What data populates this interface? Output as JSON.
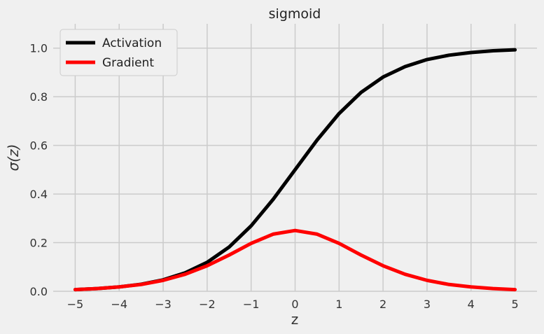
{
  "chart_data": {
    "type": "line",
    "title": "sigmoid",
    "xlabel": "z",
    "ylabel": "σ(z)",
    "xlim": [
      -5.5,
      5.5
    ],
    "ylim": [
      0,
      1.1
    ],
    "xticks": [
      -5,
      -4,
      -3,
      -2,
      -1,
      0,
      1,
      2,
      3,
      4,
      5
    ],
    "xtick_labels": [
      "−5",
      "−4",
      "−3",
      "−2",
      "−1",
      "0",
      "1",
      "2",
      "3",
      "4",
      "5"
    ],
    "yticks": [
      0.0,
      0.2,
      0.4,
      0.6,
      0.8,
      1.0
    ],
    "ytick_labels": [
      "0.0",
      "0.2",
      "0.4",
      "0.6",
      "0.8",
      "1.0"
    ],
    "grid": true,
    "legend_position": "top-left",
    "x": [
      -5,
      -4.5,
      -4,
      -3.5,
      -3,
      -2.5,
      -2,
      -1.5,
      -1,
      -0.5,
      0,
      0.5,
      1,
      1.5,
      2,
      2.5,
      3,
      3.5,
      4,
      4.5,
      5
    ],
    "series": [
      {
        "name": "Activation",
        "color": "#000000",
        "values": [
          0.007,
          0.011,
          0.018,
          0.029,
          0.047,
          0.076,
          0.119,
          0.182,
          0.269,
          0.378,
          0.5,
          0.622,
          0.731,
          0.818,
          0.881,
          0.924,
          0.953,
          0.971,
          0.982,
          0.989,
          0.993
        ]
      },
      {
        "name": "Gradient",
        "color": "#ff0000",
        "values": [
          0.007,
          0.011,
          0.018,
          0.028,
          0.045,
          0.07,
          0.105,
          0.149,
          0.197,
          0.235,
          0.25,
          0.235,
          0.197,
          0.149,
          0.105,
          0.07,
          0.045,
          0.028,
          0.018,
          0.011,
          0.007
        ]
      }
    ]
  }
}
